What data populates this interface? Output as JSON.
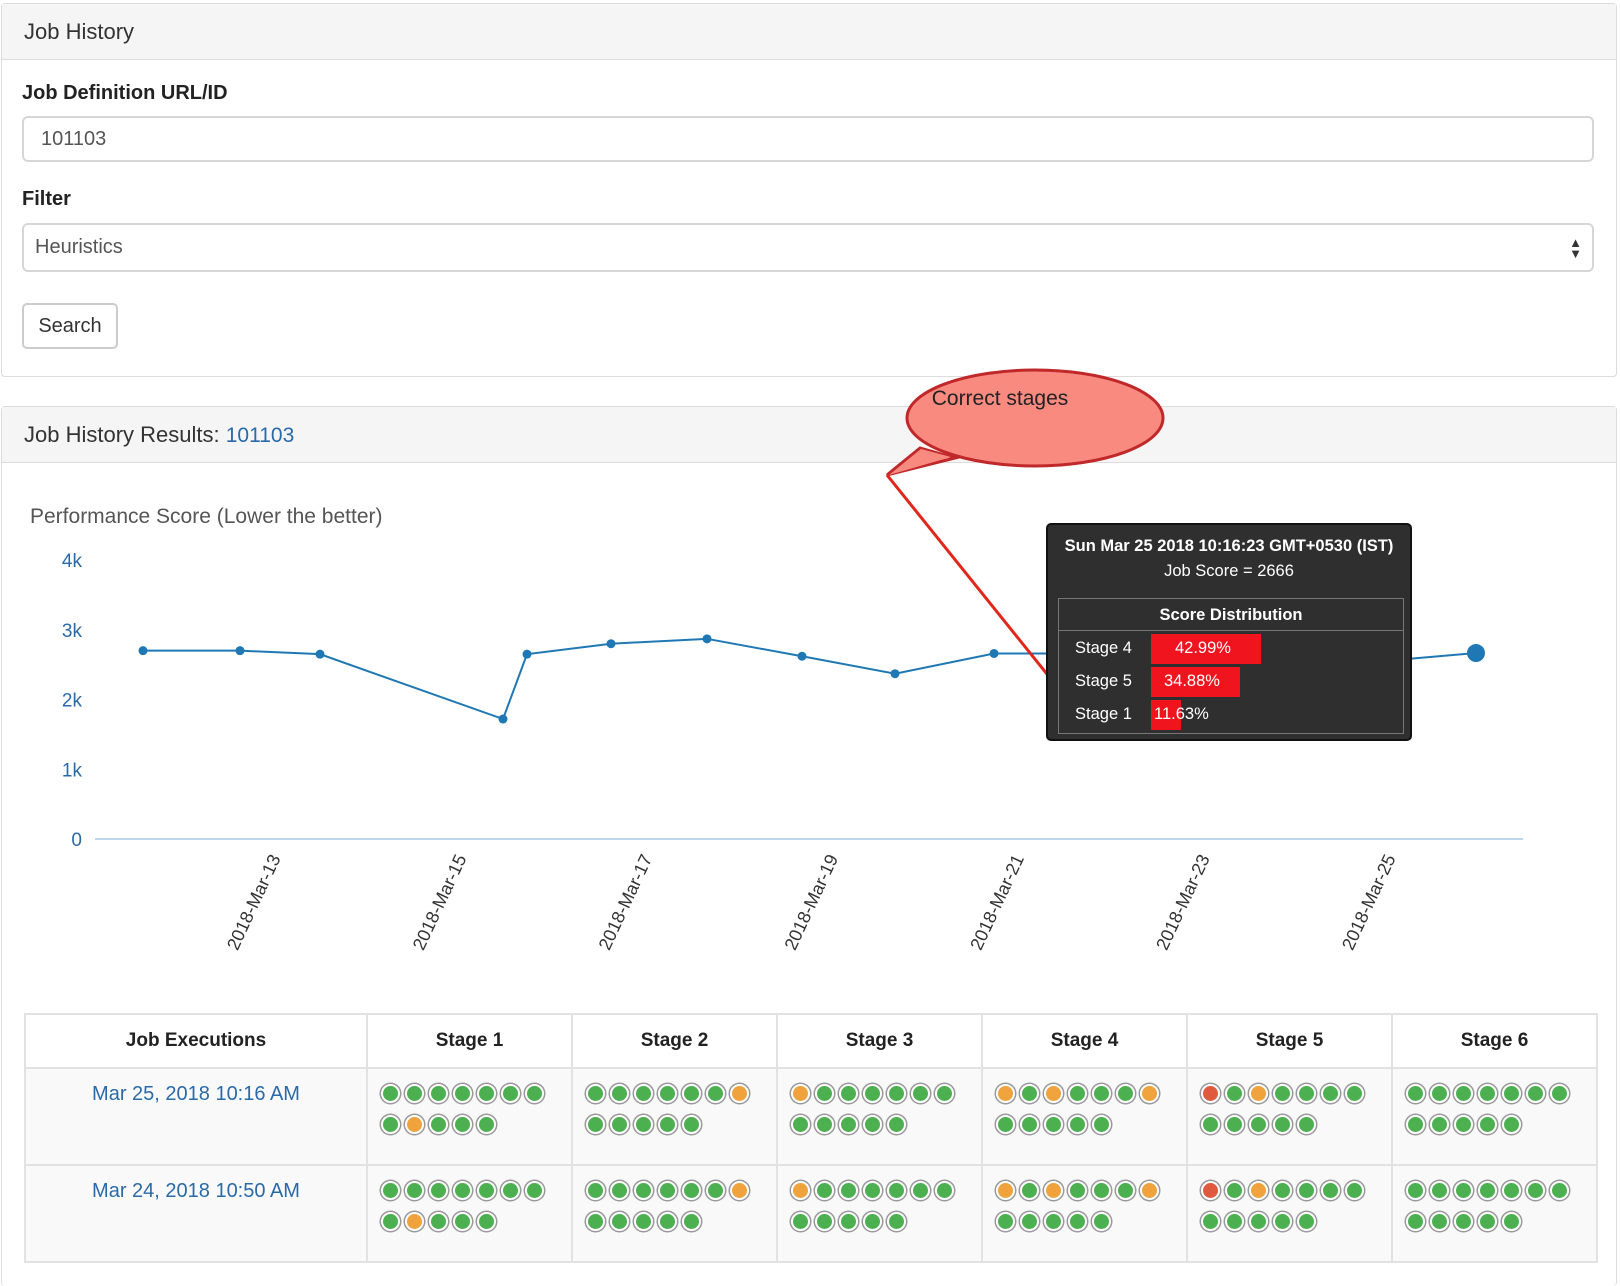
{
  "search_panel": {
    "title": "Job History",
    "job_def_label": "Job Definition URL/ID",
    "job_def_value": "101103",
    "filter_label": "Filter",
    "filter_value": "Heuristics",
    "search_label": "Search"
  },
  "results_panel": {
    "title_prefix": "Job History Results: ",
    "job_id": "101103"
  },
  "annotation": {
    "text": "Correct stages"
  },
  "chart_data": {
    "type": "line",
    "title": "Performance Score (Lower the better)",
    "xlabel": "",
    "ylabel": "",
    "ylim": [
      0,
      4000
    ],
    "y_ticks": [
      "0",
      "1k",
      "2k",
      "3k",
      "4k"
    ],
    "x_ticks": [
      "2018-Mar-13",
      "2018-Mar-15",
      "2018-Mar-17",
      "2018-Mar-19",
      "2018-Mar-21",
      "2018-Mar-23",
      "2018-Mar-25"
    ],
    "grid": false,
    "series": [
      {
        "x": [
          "2018-Mar-12",
          "2018-Mar-13",
          "2018-Mar-13",
          "2018-Mar-15",
          "2018-Mar-16",
          "2018-Mar-17",
          "2018-Mar-18",
          "2018-Mar-19",
          "2018-Mar-20",
          "2018-Mar-21",
          "2018-Mar-22",
          "2018-Mar-23",
          "2018-Mar-24",
          "2018-Mar-25"
        ],
        "values": [
          2700,
          2700,
          2650,
          1720,
          2650,
          2800,
          2870,
          2620,
          2370,
          2660,
          2660,
          2600,
          2550,
          2666
        ]
      }
    ],
    "line_color": "#1f78b4"
  },
  "tooltip": {
    "date": "Sun Mar 25 2018 10:16:23 GMT+0530 (IST)",
    "score": "Job Score = 2666",
    "dist_title": "Score Distribution",
    "rows": [
      {
        "stage": "Stage 4",
        "pct": "42.99%",
        "value": 42.99
      },
      {
        "stage": "Stage 5",
        "pct": "34.88%",
        "value": 34.88
      },
      {
        "stage": "Stage 1",
        "pct": "11.63%",
        "value": 11.63
      }
    ]
  },
  "table": {
    "headers": [
      "Job Executions",
      "Stage 1",
      "Stage 2",
      "Stage 3",
      "Stage 4",
      "Stage 5",
      "Stage 6"
    ],
    "rows": [
      {
        "date": "Mar 25, 2018 10:16 AM",
        "stages": [
          [
            "green",
            "green",
            "green",
            "green",
            "green",
            "green",
            "green",
            "green",
            "orange",
            "green",
            "green",
            "green"
          ],
          [
            "green",
            "green",
            "green",
            "green",
            "green",
            "green",
            "orange",
            "green",
            "green",
            "green",
            "green",
            "green"
          ],
          [
            "orange",
            "green",
            "green",
            "green",
            "green",
            "green",
            "green",
            "green",
            "green",
            "green",
            "green",
            "green"
          ],
          [
            "orange",
            "green",
            "orange",
            "green",
            "green",
            "green",
            "orange",
            "green",
            "green",
            "green",
            "green",
            "green"
          ],
          [
            "red",
            "green",
            "orange",
            "green",
            "green",
            "green",
            "green",
            "green",
            "green",
            "green",
            "green",
            "green"
          ],
          [
            "green",
            "green",
            "green",
            "green",
            "green",
            "green",
            "green",
            "green",
            "green",
            "green",
            "green",
            "green"
          ]
        ]
      },
      {
        "date": "Mar 24, 2018 10:50 AM",
        "stages": [
          [
            "green",
            "green",
            "green",
            "green",
            "green",
            "green",
            "green",
            "green",
            "orange",
            "green",
            "green",
            "green"
          ],
          [
            "green",
            "green",
            "green",
            "green",
            "green",
            "green",
            "orange",
            "green",
            "green",
            "green",
            "green",
            "green"
          ],
          [
            "orange",
            "green",
            "green",
            "green",
            "green",
            "green",
            "green",
            "green",
            "green",
            "green",
            "green",
            "green"
          ],
          [
            "orange",
            "green",
            "orange",
            "green",
            "green",
            "green",
            "orange",
            "green",
            "green",
            "green",
            "green",
            "green"
          ],
          [
            "red",
            "green",
            "orange",
            "green",
            "green",
            "green",
            "green",
            "green",
            "green",
            "green",
            "green",
            "green"
          ],
          [
            "green",
            "green",
            "green",
            "green",
            "green",
            "green",
            "green",
            "green",
            "green",
            "green",
            "green",
            "green"
          ]
        ]
      }
    ]
  }
}
